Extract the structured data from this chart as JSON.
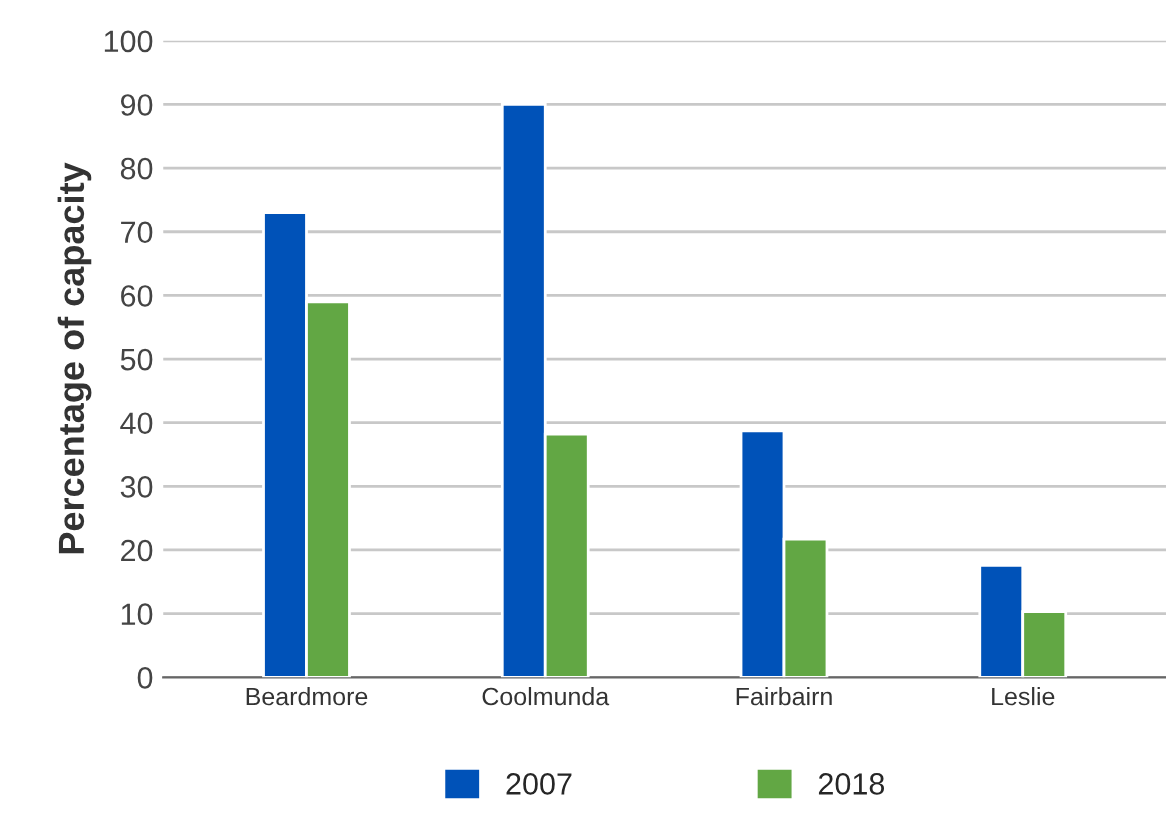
{
  "chart_data": {
    "type": "bar",
    "ylabel": "Percentage of capacity",
    "categories": [
      "Beardmore",
      "Coolmunda",
      "Fairbairn",
      "Leslie"
    ],
    "series": [
      {
        "name": "2007",
        "color": "#0052b8",
        "values": [
          73,
          90,
          38.7,
          17.6
        ]
      },
      {
        "name": "2018",
        "color": "#62a744",
        "values": [
          59,
          38.2,
          21.7,
          10.3
        ]
      }
    ],
    "ylim": [
      0,
      100
    ],
    "yticks": [
      0,
      10,
      20,
      30,
      40,
      50,
      60,
      70,
      80,
      90,
      100
    ],
    "grid": "y",
    "legend": "bottom"
  }
}
